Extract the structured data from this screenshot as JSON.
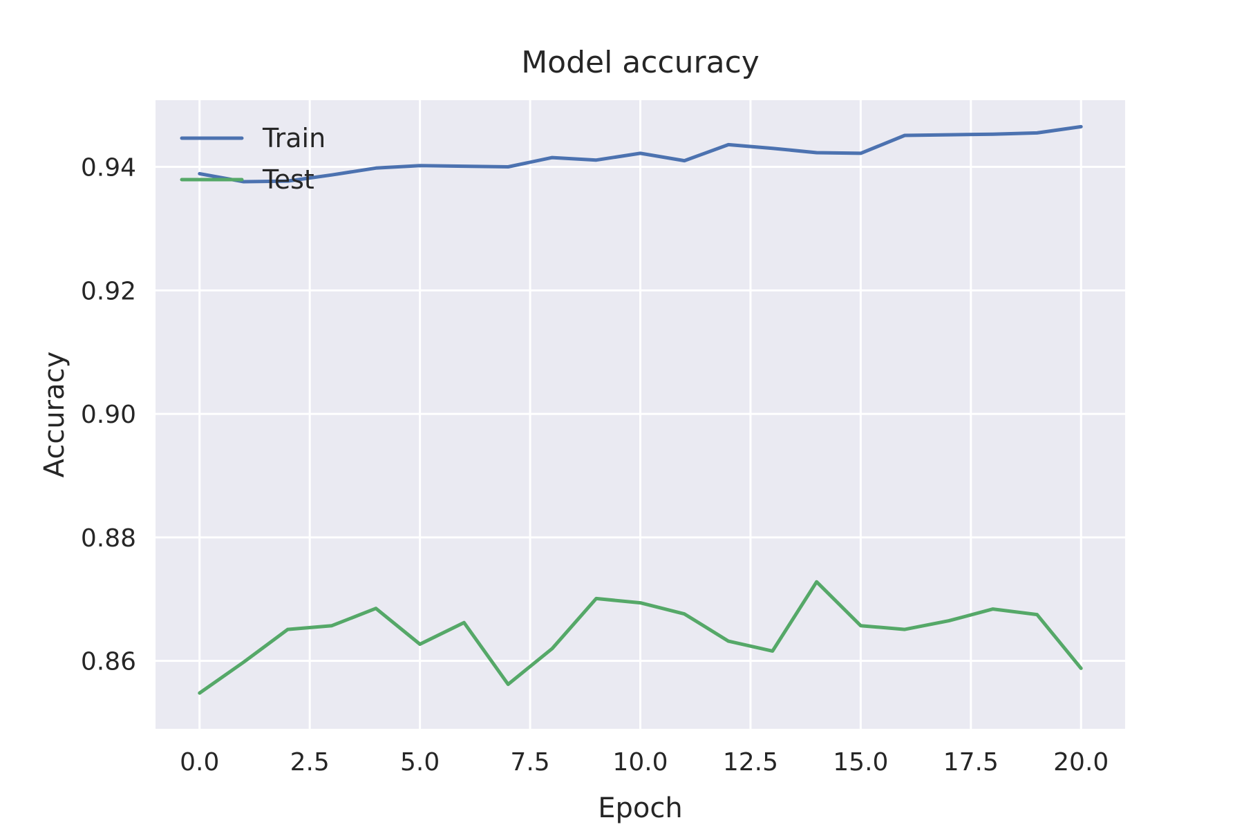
{
  "chart_data": {
    "type": "line",
    "title": "Model accuracy",
    "xlabel": "Epoch",
    "ylabel": "Accuracy",
    "x": [
      0,
      1,
      2,
      3,
      4,
      5,
      6,
      7,
      8,
      9,
      10,
      11,
      12,
      13,
      14,
      15,
      16,
      17,
      18,
      19,
      20
    ],
    "series": [
      {
        "name": "Train",
        "color": "#4c72b0",
        "values": [
          0.9389,
          0.9376,
          0.9377,
          0.9387,
          0.9398,
          0.9402,
          0.9401,
          0.94,
          0.9415,
          0.9411,
          0.9422,
          0.941,
          0.9436,
          0.943,
          0.9423,
          0.9422,
          0.9451,
          0.9452,
          0.9453,
          0.9455,
          0.9465
        ]
      },
      {
        "name": "Test",
        "color": "#55a868",
        "values": [
          0.8548,
          0.8598,
          0.8651,
          0.8657,
          0.8685,
          0.8627,
          0.8662,
          0.8562,
          0.862,
          0.8701,
          0.8694,
          0.8676,
          0.8632,
          0.8616,
          0.8728,
          0.8657,
          0.8651,
          0.8665,
          0.8684,
          0.8675,
          0.8588
        ]
      }
    ],
    "xlim": [
      -1.0,
      21.0
    ],
    "ylim": [
      0.849,
      0.9508
    ],
    "xticks": [
      0.0,
      2.5,
      5.0,
      7.5,
      10.0,
      12.5,
      15.0,
      17.5,
      20.0
    ],
    "xtick_labels": [
      "0.0",
      "2.5",
      "5.0",
      "7.5",
      "10.0",
      "12.5",
      "15.0",
      "17.5",
      "20.0"
    ],
    "yticks": [
      0.86,
      0.88,
      0.9,
      0.92,
      0.94
    ],
    "ytick_labels": [
      "0.86",
      "0.88",
      "0.90",
      "0.92",
      "0.94"
    ],
    "grid": true,
    "legend_position": "top-left",
    "background_color": "#eaeaf2",
    "grid_color": "#ffffff"
  }
}
